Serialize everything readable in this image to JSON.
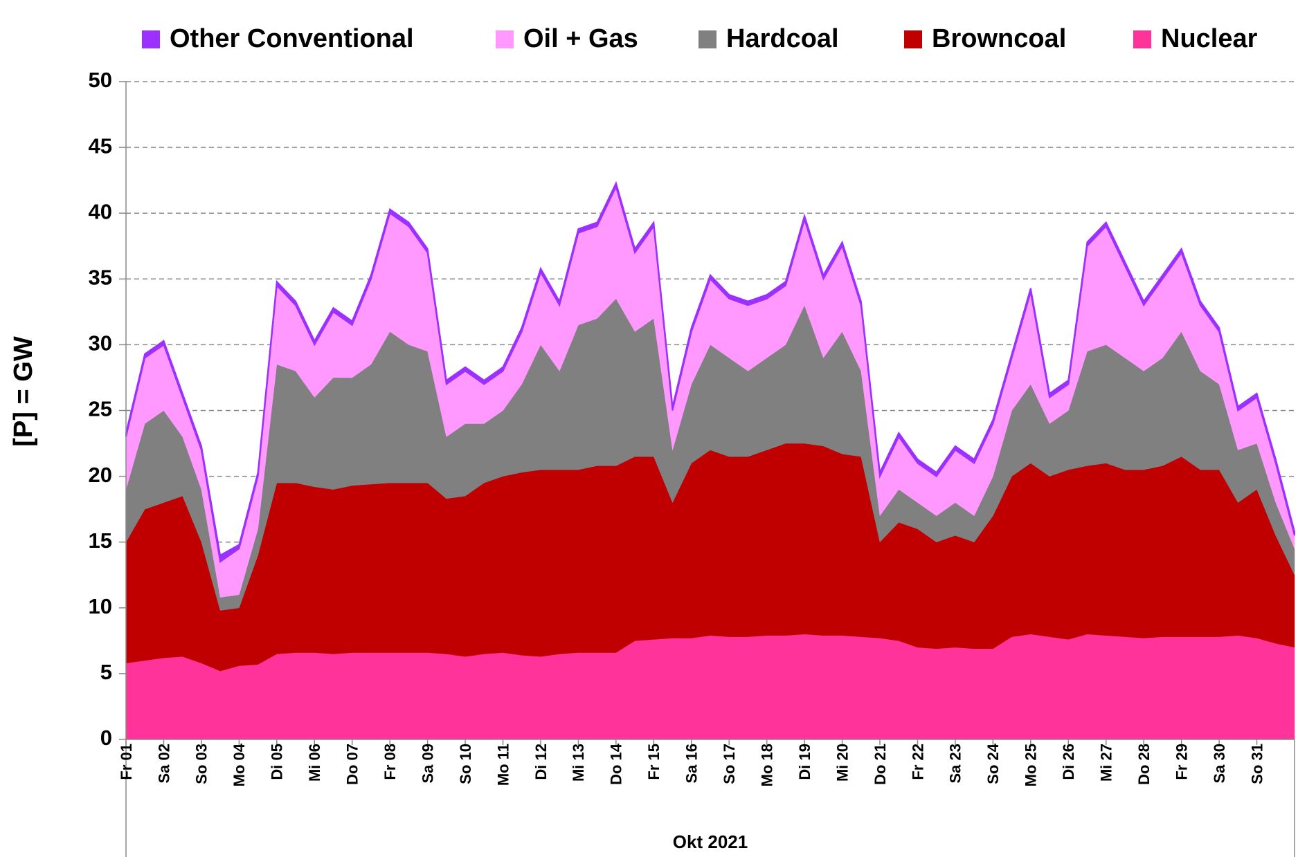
{
  "chart_data": {
    "type": "stacked-area",
    "y_label": "[P] = GW",
    "x_label": "Okt 2021",
    "categories": [
      "Fr 01",
      null,
      "Sa 02",
      null,
      "So 03",
      null,
      "Mo 04",
      null,
      "Di 05",
      null,
      "Mi 06",
      null,
      "Do 07",
      null,
      "Fr 08",
      null,
      "Sa 09",
      null,
      "So 10",
      null,
      "Mo 11",
      null,
      "Di 12",
      null,
      "Mi 13",
      null,
      "Do 14",
      null,
      "Fr 15",
      null,
      "Sa 16",
      null,
      "So 17",
      null,
      "Mo 18",
      null,
      "Di 19",
      null,
      "Mi 20",
      null,
      "Do 21",
      null,
      "Fr 22",
      null,
      "Sa 23",
      null,
      "So 24",
      null,
      "Mo 25",
      null,
      "Di 26",
      null,
      "Mi 27",
      null,
      "Do 28",
      null,
      "Fr 29",
      null,
      "Sa 30",
      null,
      "So 31",
      null,
      null
    ],
    "series": [
      {
        "name": "Other Conventional",
        "color": "#9b30ff",
        "values": [
          0.3,
          0.3,
          0.3,
          0.3,
          0.3,
          0.5,
          0.3,
          0.3,
          0.3,
          0.3,
          0.3,
          0.3,
          0.3,
          0.3,
          0.3,
          0.3,
          0.3,
          0.3,
          0.3,
          0.3,
          0.3,
          0.3,
          0.3,
          0.3,
          0.3,
          0.3,
          0.3,
          0.3,
          0.3,
          0.3,
          0.3,
          0.3,
          0.3,
          0.3,
          0.3,
          0.3,
          0.3,
          0.3,
          0.3,
          0.3,
          0.3,
          0.3,
          0.3,
          0.3,
          0.3,
          0.3,
          0.3,
          0.3,
          0.3,
          0.3,
          0.3,
          0.3,
          0.3,
          0.3,
          0.3,
          0.3,
          0.3,
          0.3,
          0.3,
          0.3,
          0.3,
          0.3,
          0.3
        ]
      },
      {
        "name": "Oil + Gas",
        "color": "#ff99ff",
        "values": [
          4,
          5,
          5,
          3,
          3,
          2.7,
          3.5,
          4,
          6,
          5,
          4,
          5,
          4,
          6.5,
          9,
          9,
          7.5,
          4,
          4,
          3,
          3,
          4,
          5.5,
          5,
          7,
          7,
          8.5,
          6,
          7,
          3,
          4,
          5,
          4.5,
          5,
          4.5,
          4.5,
          6.5,
          6,
          6.5,
          5,
          3,
          4,
          3,
          3,
          4,
          4,
          4,
          4,
          7,
          2,
          2,
          8,
          9,
          7,
          5,
          6,
          6,
          5,
          4,
          3,
          3.5,
          3,
          1
        ]
      },
      {
        "name": "Hardcoal",
        "color": "#808080",
        "values": [
          4,
          6.5,
          7,
          4.5,
          4,
          1,
          1,
          2,
          9,
          8.5,
          6.8,
          8.5,
          8.2,
          9.1,
          11.5,
          10.5,
          10,
          4.7,
          5.5,
          4.5,
          5,
          6.7,
          9.5,
          7.5,
          11,
          11.2,
          12.7,
          9.5,
          10.5,
          4,
          6,
          8,
          7.5,
          6.5,
          7,
          7.5,
          10.5,
          6.7,
          9.3,
          6.5,
          2,
          2.5,
          2,
          2,
          2.5,
          2,
          3,
          5,
          6,
          4,
          4.5,
          8.7,
          9,
          8.5,
          7.5,
          8.2,
          9.5,
          7.5,
          6.5,
          4,
          3.5,
          2.5,
          2
        ]
      },
      {
        "name": "Browncoal",
        "color": "#c00000",
        "values": [
          9.2,
          11.5,
          11.8,
          12.2,
          9.2,
          4.6,
          4.4,
          8.3,
          13,
          12.9,
          12.6,
          12.5,
          12.7,
          12.8,
          12.9,
          12.9,
          12.9,
          11.8,
          12.2,
          13,
          13.4,
          13.9,
          14.2,
          14,
          13.9,
          14.2,
          14.2,
          14,
          13.9,
          10.3,
          13.3,
          14.1,
          13.7,
          13.7,
          14.1,
          14.6,
          14.5,
          14.4,
          13.8,
          13.7,
          7.3,
          9,
          9,
          8.1,
          8.5,
          8.1,
          10.1,
          12.2,
          13,
          12.2,
          12.9,
          12.8,
          13.1,
          12.7,
          12.8,
          13,
          13.7,
          12.7,
          12.7,
          10.1,
          11.3,
          8.2,
          5.5
        ]
      },
      {
        "name": "Nuclear",
        "color": "#ff3399",
        "values": [
          5.8,
          6.0,
          6.2,
          6.3,
          5.8,
          5.2,
          5.6,
          5.7,
          6.5,
          6.6,
          6.6,
          6.5,
          6.6,
          6.6,
          6.6,
          6.6,
          6.6,
          6.5,
          6.3,
          6.5,
          6.6,
          6.4,
          6.3,
          6.5,
          6.6,
          6.6,
          6.6,
          7.5,
          7.6,
          7.7,
          7.7,
          7.9,
          7.8,
          7.8,
          7.9,
          7.9,
          8.0,
          7.9,
          7.9,
          7.8,
          7.7,
          7.5,
          7.0,
          6.9,
          7.0,
          6.9,
          6.9,
          7.8,
          8.0,
          7.8,
          7.6,
          8.0,
          7.9,
          7.8,
          7.7,
          7.8,
          7.8,
          7.8,
          7.8,
          7.9,
          7.7,
          7.3,
          7.0
        ]
      }
    ],
    "ylim": [
      0,
      50
    ],
    "yticks": [
      0,
      5,
      10,
      15,
      20,
      25,
      30,
      35,
      40,
      45,
      50
    ],
    "grid": true
  }
}
